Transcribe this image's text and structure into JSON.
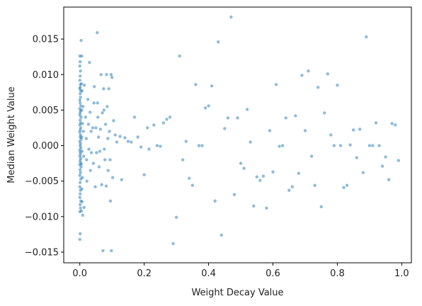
{
  "chart_data": {
    "type": "scatter",
    "title": "",
    "xlabel": "Weight Decay Value",
    "ylabel": "Median Weight Value",
    "xlim": [
      -0.05,
      1.03
    ],
    "ylim": [
      -0.0165,
      0.0195
    ],
    "grid": false,
    "legend": "none",
    "colors": {
      "points": "#1f77b4",
      "axes": "#000000",
      "background": "#ffffff"
    },
    "x_ticks": [
      {
        "value": 0.0,
        "label": "0.0"
      },
      {
        "value": 0.2,
        "label": "0.2"
      },
      {
        "value": 0.4,
        "label": "0.4"
      },
      {
        "value": 0.6,
        "label": "0.6"
      },
      {
        "value": 0.8,
        "label": "0.8"
      },
      {
        "value": 1.0,
        "label": "1.0"
      }
    ],
    "y_ticks": [
      {
        "value": -0.015,
        "label": "−0.015"
      },
      {
        "value": -0.01,
        "label": "−0.010"
      },
      {
        "value": -0.005,
        "label": "−0.005"
      },
      {
        "value": 0.0,
        "label": "0.000"
      },
      {
        "value": 0.005,
        "label": "0.005"
      },
      {
        "value": 0.01,
        "label": "0.010"
      },
      {
        "value": 0.015,
        "label": "0.015"
      }
    ],
    "points": [
      [
        0.0,
        0.0126
      ],
      [
        0.001,
        0.0118
      ],
      [
        0.0,
        0.0112
      ],
      [
        0.002,
        0.0105
      ],
      [
        0.001,
        0.0098
      ],
      [
        0.0,
        0.0092
      ],
      [
        0.002,
        0.0086
      ],
      [
        0.001,
        0.0082
      ],
      [
        0.0,
        0.008
      ],
      [
        0.003,
        0.0077
      ],
      [
        0.001,
        0.0073
      ],
      [
        0.002,
        0.0068
      ],
      [
        0.0,
        0.0064
      ],
      [
        0.001,
        0.006
      ],
      [
        0.003,
        0.0056
      ],
      [
        0.0,
        0.0052
      ],
      [
        0.002,
        0.0049
      ],
      [
        0.001,
        0.0046
      ],
      [
        0.0,
        0.0043
      ],
      [
        0.004,
        0.004
      ],
      [
        0.001,
        0.0036
      ],
      [
        0.002,
        0.0032
      ],
      [
        0.0,
        0.0029
      ],
      [
        0.003,
        0.0025
      ],
      [
        0.001,
        0.0022
      ],
      [
        0.0,
        0.0019
      ],
      [
        0.002,
        0.0015
      ],
      [
        0.001,
        0.0012
      ],
      [
        0.004,
        0.0009
      ],
      [
        0.0,
        0.0006
      ],
      [
        0.002,
        0.0003
      ],
      [
        0.001,
        0.0
      ],
      [
        0.003,
        -0.0003
      ],
      [
        0.0,
        -0.0006
      ],
      [
        0.001,
        -0.0009
      ],
      [
        0.002,
        -0.0012
      ],
      [
        0.0,
        -0.0015
      ],
      [
        0.003,
        -0.0018
      ],
      [
        0.001,
        -0.0021
      ],
      [
        0.002,
        -0.0024
      ],
      [
        0.0,
        -0.0027
      ],
      [
        0.004,
        -0.003
      ],
      [
        0.001,
        -0.0034
      ],
      [
        0.002,
        -0.0038
      ],
      [
        0.0,
        -0.0042
      ],
      [
        0.003,
        -0.0047
      ],
      [
        0.001,
        -0.0052
      ],
      [
        0.0,
        -0.0058
      ],
      [
        0.002,
        -0.0063
      ],
      [
        0.001,
        -0.0068
      ],
      [
        0.0,
        -0.0073
      ],
      [
        0.003,
        -0.0078
      ],
      [
        0.001,
        -0.0083
      ],
      [
        0.002,
        -0.0088
      ],
      [
        0.0,
        -0.0093
      ],
      [
        0.001,
        -0.0124
      ],
      [
        0.0,
        -0.0132
      ],
      [
        0.004,
        0.0148
      ],
      [
        0.006,
        0.0126
      ],
      [
        0.005,
        0.0087
      ],
      [
        0.007,
        0.0077
      ],
      [
        0.006,
        0.005
      ],
      [
        0.008,
        0.0031
      ],
      [
        0.006,
        0.0012
      ],
      [
        0.007,
        -0.0008
      ],
      [
        0.005,
        -0.0026
      ],
      [
        0.008,
        -0.0045
      ],
      [
        0.006,
        -0.0061
      ],
      [
        0.007,
        -0.0079
      ],
      [
        0.005,
        -0.0092
      ],
      [
        0.009,
        -0.0098
      ],
      [
        0.01,
        0.0055
      ],
      [
        0.011,
        0.002
      ],
      [
        0.012,
        -0.0015
      ],
      [
        0.013,
        -0.0087
      ],
      [
        0.014,
        0.0085
      ],
      [
        0.018,
        0.004
      ],
      [
        0.02,
        0.001
      ],
      [
        0.021,
        -0.002
      ],
      [
        0.022,
        -0.005
      ],
      [
        0.025,
        0.0065
      ],
      [
        0.027,
        0.003
      ],
      [
        0.028,
        -0.0005
      ],
      [
        0.03,
        0.0117
      ],
      [
        0.032,
        0.0047
      ],
      [
        0.033,
        -0.0035
      ],
      [
        0.035,
        0.002
      ],
      [
        0.036,
        -0.001
      ],
      [
        0.04,
        0.0025
      ],
      [
        0.042,
        -0.0025
      ],
      [
        0.044,
        0.006
      ],
      [
        0.045,
        0.0083
      ],
      [
        0.048,
        -0.0058
      ],
      [
        0.05,
        0.0025
      ],
      [
        0.052,
        -0.001
      ],
      [
        0.054,
        0.0159
      ],
      [
        0.055,
        0.006
      ],
      [
        0.056,
        0.004
      ],
      [
        0.058,
        0.0012
      ],
      [
        0.06,
        -0.003
      ],
      [
        0.062,
        -0.0008
      ],
      [
        0.064,
        0.0023
      ],
      [
        0.066,
        0.01
      ],
      [
        0.068,
        -0.0055
      ],
      [
        0.07,
        0.0046
      ],
      [
        0.072,
        -0.0148
      ],
      [
        0.074,
        0.008
      ],
      [
        0.075,
        0.005
      ],
      [
        0.076,
        -0.0005
      ],
      [
        0.078,
        -0.002
      ],
      [
        0.08,
        0.003
      ],
      [
        0.082,
        -0.0057
      ],
      [
        0.083,
        0.01
      ],
      [
        0.085,
        0.0055
      ],
      [
        0.087,
        0.001
      ],
      [
        0.088,
        -0.0035
      ],
      [
        0.09,
        0.008
      ],
      [
        0.092,
        0.002
      ],
      [
        0.094,
        -0.002
      ],
      [
        0.095,
        -0.0078
      ],
      [
        0.097,
        0.01
      ],
      [
        0.098,
        -0.0148
      ],
      [
        0.1,
        0.0096
      ],
      [
        0.102,
        -0.0045
      ],
      [
        0.105,
        0.0035
      ],
      [
        0.11,
        0.0015
      ],
      [
        0.115,
        0.0005
      ],
      [
        0.125,
        0.0013
      ],
      [
        0.13,
        -0.0048
      ],
      [
        0.14,
        0.0011
      ],
      [
        0.15,
        0.0006
      ],
      [
        0.16,
        0.0005
      ],
      [
        0.17,
        0.004
      ],
      [
        0.18,
        0.0012
      ],
      [
        0.19,
        -0.0002
      ],
      [
        0.2,
        -0.0041
      ],
      [
        0.21,
        0.0025
      ],
      [
        0.215,
        -0.0005
      ],
      [
        0.23,
        0.0029
      ],
      [
        0.24,
        0.0
      ],
      [
        0.25,
        -0.0001
      ],
      [
        0.26,
        0.0032
      ],
      [
        0.27,
        0.0037
      ],
      [
        0.28,
        0.004
      ],
      [
        0.29,
        -0.0138
      ],
      [
        0.3,
        -0.0101
      ],
      [
        0.31,
        0.0126
      ],
      [
        0.32,
        -0.002
      ],
      [
        0.33,
        0.0006
      ],
      [
        0.34,
        -0.0046
      ],
      [
        0.35,
        -0.0056
      ],
      [
        0.36,
        0.0086
      ],
      [
        0.37,
        0.0
      ],
      [
        0.38,
        0.0
      ],
      [
        0.39,
        0.0053
      ],
      [
        0.4,
        0.0056
      ],
      [
        0.41,
        0.0084
      ],
      [
        0.42,
        -0.0078
      ],
      [
        0.43,
        0.0146
      ],
      [
        0.44,
        -0.0126
      ],
      [
        0.45,
        0.0024
      ],
      [
        0.46,
        0.0039
      ],
      [
        0.47,
        0.0181
      ],
      [
        0.48,
        -0.0069
      ],
      [
        0.49,
        0.0039
      ],
      [
        0.5,
        -0.0025
      ],
      [
        0.51,
        -0.0032
      ],
      [
        0.52,
        0.0051
      ],
      [
        0.53,
        0.0005
      ],
      [
        0.54,
        -0.0085
      ],
      [
        0.55,
        -0.0044
      ],
      [
        0.56,
        -0.0049
      ],
      [
        0.57,
        -0.0043
      ],
      [
        0.58,
        -0.0088
      ],
      [
        0.59,
        0.0021
      ],
      [
        0.6,
        -0.0037
      ],
      [
        0.61,
        0.0086
      ],
      [
        0.62,
        -0.0001
      ],
      [
        0.63,
        0.0
      ],
      [
        0.64,
        0.0039
      ],
      [
        0.65,
        -0.0063
      ],
      [
        0.66,
        -0.0058
      ],
      [
        0.67,
        0.0042
      ],
      [
        0.68,
        -0.0039
      ],
      [
        0.69,
        0.0099
      ],
      [
        0.7,
        0.0021
      ],
      [
        0.71,
        0.0105
      ],
      [
        0.72,
        -0.0015
      ],
      [
        0.73,
        -0.0056
      ],
      [
        0.74,
        0.0082
      ],
      [
        0.75,
        -0.0086
      ],
      [
        0.76,
        0.0046
      ],
      [
        0.77,
        0.0101
      ],
      [
        0.78,
        0.0015
      ],
      [
        0.79,
        0.0
      ],
      [
        0.8,
        0.0085
      ],
      [
        0.81,
        0.0
      ],
      [
        0.82,
        -0.0059
      ],
      [
        0.83,
        -0.0056
      ],
      [
        0.84,
        0.0001
      ],
      [
        0.85,
        0.0022
      ],
      [
        0.86,
        -0.0017
      ],
      [
        0.87,
        0.0023
      ],
      [
        0.88,
        -0.0038
      ],
      [
        0.89,
        0.0153
      ],
      [
        0.9,
        0.0
      ],
      [
        0.91,
        0.0
      ],
      [
        0.92,
        0.0032
      ],
      [
        0.93,
        0.0
      ],
      [
        0.94,
        -0.0029
      ],
      [
        0.95,
        -0.0016
      ],
      [
        0.96,
        -0.0048
      ],
      [
        0.97,
        0.0031
      ],
      [
        0.98,
        0.0029
      ],
      [
        0.99,
        -0.0021
      ]
    ]
  }
}
